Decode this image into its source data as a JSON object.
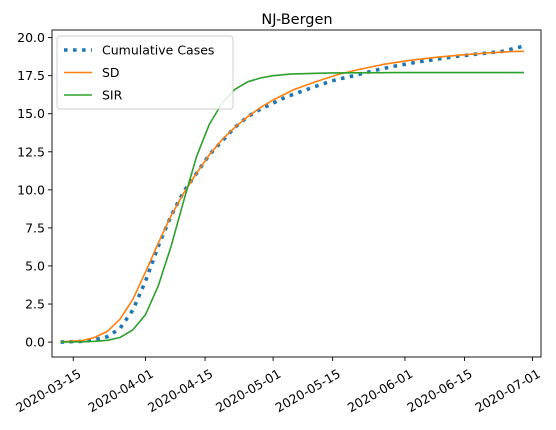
{
  "chart_data": {
    "type": "line",
    "title": "NJ-Bergen",
    "xlabel": "",
    "ylabel": "",
    "xlim": [
      "2020-03-10",
      "2020-07-03"
    ],
    "ylim": [
      -0.98,
      20.5
    ],
    "x_ticks": [
      "2020-03-15",
      "2020-04-01",
      "2020-04-15",
      "2020-05-01",
      "2020-05-15",
      "2020-06-01",
      "2020-06-15",
      "2020-07-01"
    ],
    "y_ticks": [
      "0.0",
      "2.5",
      "5.0",
      "7.5",
      "10.0",
      "12.5",
      "15.0",
      "17.5",
      "20.0"
    ],
    "grid": false,
    "legend_position": "upper-left",
    "series": [
      {
        "name": "Cumulative Cases",
        "color": "#1f77b4",
        "style": "dotted",
        "x": [
          "2020-03-12",
          "2020-03-17",
          "2020-03-20",
          "2020-03-23",
          "2020-03-26",
          "2020-03-29",
          "2020-04-01",
          "2020-04-04",
          "2020-04-07",
          "2020-04-10",
          "2020-04-13",
          "2020-04-16",
          "2020-04-19",
          "2020-04-22",
          "2020-04-25",
          "2020-04-28",
          "2020-05-01",
          "2020-05-04",
          "2020-05-08",
          "2020-05-12",
          "2020-05-16",
          "2020-05-20",
          "2020-05-25",
          "2020-05-30",
          "2020-06-04",
          "2020-06-09",
          "2020-06-14",
          "2020-06-19",
          "2020-06-24",
          "2020-06-29"
        ],
        "values": [
          0.0,
          0.05,
          0.15,
          0.35,
          0.9,
          2.1,
          4.0,
          6.3,
          8.3,
          9.9,
          11.1,
          12.3,
          13.2,
          14.1,
          14.8,
          15.3,
          15.7,
          16.1,
          16.5,
          16.9,
          17.25,
          17.5,
          17.85,
          18.15,
          18.4,
          18.6,
          18.8,
          18.95,
          19.1,
          19.45
        ]
      },
      {
        "name": "SD",
        "color": "#ff7f0e",
        "style": "solid",
        "x": [
          "2020-03-12",
          "2020-03-17",
          "2020-03-20",
          "2020-03-23",
          "2020-03-26",
          "2020-03-29",
          "2020-04-01",
          "2020-04-04",
          "2020-04-07",
          "2020-04-10",
          "2020-04-13",
          "2020-04-16",
          "2020-04-19",
          "2020-04-22",
          "2020-04-25",
          "2020-04-28",
          "2020-05-01",
          "2020-05-06",
          "2020-05-11",
          "2020-05-16",
          "2020-05-21",
          "2020-05-27",
          "2020-06-02",
          "2020-06-08",
          "2020-06-14",
          "2020-06-20",
          "2020-06-26",
          "2020-06-29"
        ],
        "values": [
          0.02,
          0.1,
          0.3,
          0.7,
          1.5,
          2.8,
          4.6,
          6.5,
          8.3,
          9.8,
          11.1,
          12.3,
          13.3,
          14.1,
          14.8,
          15.4,
          15.9,
          16.6,
          17.1,
          17.55,
          17.9,
          18.25,
          18.5,
          18.7,
          18.85,
          18.98,
          19.08,
          19.1
        ]
      },
      {
        "name": "SIR",
        "color": "#2ca02c",
        "style": "solid",
        "x": [
          "2020-03-12",
          "2020-03-17",
          "2020-03-20",
          "2020-03-23",
          "2020-03-26",
          "2020-03-29",
          "2020-04-01",
          "2020-04-04",
          "2020-04-07",
          "2020-04-10",
          "2020-04-13",
          "2020-04-16",
          "2020-04-19",
          "2020-04-22",
          "2020-04-25",
          "2020-04-28",
          "2020-05-01",
          "2020-05-05",
          "2020-05-10",
          "2020-05-15",
          "2020-05-20",
          "2020-05-30",
          "2020-06-15",
          "2020-06-29"
        ],
        "values": [
          0.0,
          0.02,
          0.05,
          0.12,
          0.3,
          0.8,
          1.8,
          3.7,
          6.3,
          9.3,
          12.2,
          14.3,
          15.7,
          16.6,
          17.1,
          17.35,
          17.5,
          17.6,
          17.65,
          17.68,
          17.69,
          17.7,
          17.7,
          17.7
        ]
      }
    ]
  }
}
